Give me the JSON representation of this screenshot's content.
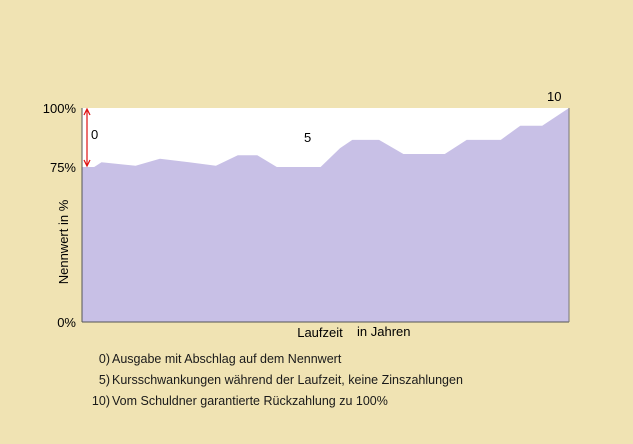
{
  "chart_data": {
    "type": "area",
    "ylabel": "Nennwert in %",
    "xlabel": "Laufzeit",
    "xlabel_suffix": "in Jahren",
    "yticks": [
      "100%",
      "75%",
      "0%"
    ],
    "ylim": [
      0,
      100
    ],
    "xlim": [
      0,
      10
    ],
    "annotations": [
      "0",
      "5",
      "10"
    ],
    "series": [
      {
        "fill": "#c8c0e6",
        "points": [
          [
            0,
            75
          ],
          [
            0.25,
            75
          ],
          [
            0.4,
            77
          ],
          [
            1.1,
            75.5
          ],
          [
            1.6,
            78.5
          ],
          [
            2.2,
            77
          ],
          [
            2.75,
            75.5
          ],
          [
            3.2,
            80
          ],
          [
            3.6,
            80
          ],
          [
            4.0,
            75
          ],
          [
            4.9,
            75
          ],
          [
            5.3,
            83
          ],
          [
            5.55,
            86.5
          ],
          [
            6.1,
            86.5
          ],
          [
            6.6,
            80.5
          ],
          [
            7.45,
            80.5
          ],
          [
            7.9,
            86.5
          ],
          [
            8.6,
            86.5
          ],
          [
            9.0,
            92.5
          ],
          [
            9.45,
            92.5
          ],
          [
            10,
            100
          ]
        ]
      }
    ]
  },
  "legend": [
    {
      "num": "0)",
      "text": "Ausgabe mit Abschlag auf dem Nennwert"
    },
    {
      "num": "5)",
      "text": "Kursschwankungen während der Laufzeit, keine Zinszahlungen"
    },
    {
      "num": "10)",
      "text": "Vom Schuldner garantierte Rückzahlung zu 100%"
    }
  ],
  "colors": {
    "area": "#c8c0e6",
    "axis": "#555555",
    "marker": "#e01010",
    "background": "#f0e3b3"
  }
}
